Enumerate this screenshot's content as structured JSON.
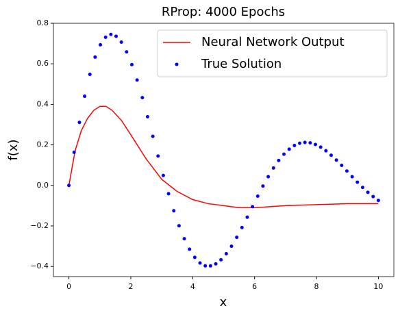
{
  "chart_data": {
    "type": "line",
    "title": "RProp: 4000 Epochs",
    "xlabel": "x",
    "ylabel": "f(x)",
    "xlim": [
      -0.5,
      10.5
    ],
    "ylim": [
      -0.45,
      0.8
    ],
    "xticks": [
      0,
      2,
      4,
      6,
      8,
      10
    ],
    "yticks": [
      {
        "value": -0.4,
        "label": "−0.4"
      },
      {
        "value": -0.2,
        "label": "−0.2"
      },
      {
        "value": 0,
        "label": "0.0"
      },
      0.2,
      0.4,
      0.6,
      0.8
    ],
    "legend": "upper right",
    "series": [
      {
        "name": "Neural Network Output",
        "color": "#ff0000",
        "type": "line",
        "x": [
          0,
          0.2,
          0.4,
          0.6,
          0.8,
          1.0,
          1.2,
          1.4,
          1.7,
          2,
          2.5,
          3,
          3.5,
          4,
          4.5,
          5,
          5.5,
          6,
          7,
          8,
          9,
          10
        ],
        "values": [
          0,
          0.17,
          0.27,
          0.33,
          0.37,
          0.39,
          0.39,
          0.37,
          0.32,
          0.25,
          0.13,
          0.03,
          -0.03,
          -0.07,
          -0.09,
          -0.1,
          -0.11,
          -0.11,
          -0.1,
          -0.095,
          -0.09,
          -0.09
        ]
      },
      {
        "name": "True Solution",
        "color": "#0000ff",
        "type": "scatter",
        "x": [
          0,
          0.169,
          0.339,
          0.508,
          0.678,
          0.847,
          1.017,
          1.186,
          1.356,
          1.525,
          1.695,
          1.864,
          2.034,
          2.203,
          2.373,
          2.542,
          2.712,
          2.881,
          3.051,
          3.22,
          3.39,
          3.559,
          3.729,
          3.898,
          4.068,
          4.237,
          4.407,
          4.576,
          4.746,
          4.915,
          5.085,
          5.254,
          5.424,
          5.593,
          5.763,
          5.932,
          6.102,
          6.271,
          6.441,
          6.61,
          6.78,
          6.949,
          7.119,
          7.288,
          7.458,
          7.627,
          7.797,
          7.966,
          8.136,
          8.305,
          8.475,
          8.644,
          8.814,
          8.983,
          9.153,
          9.322,
          9.492,
          9.661,
          9.831,
          10
        ],
        "values": [
          0,
          0.163,
          0.311,
          0.44,
          0.548,
          0.633,
          0.694,
          0.731,
          0.745,
          0.736,
          0.707,
          0.659,
          0.596,
          0.52,
          0.433,
          0.339,
          0.242,
          0.145,
          0.049,
          -0.041,
          -0.125,
          -0.199,
          -0.263,
          -0.315,
          -0.355,
          -0.383,
          -0.397,
          -0.397,
          -0.387,
          -0.367,
          -0.337,
          -0.3,
          -0.256,
          -0.208,
          -0.157,
          -0.105,
          -0.053,
          -0.003,
          0.043,
          0.086,
          0.123,
          0.154,
          0.179,
          0.197,
          0.208,
          0.212,
          0.21,
          0.202,
          0.189,
          0.171,
          0.149,
          0.125,
          0.099,
          0.071,
          0.043,
          0.016,
          -0.01,
          -0.034,
          -0.055,
          -0.074
        ]
      }
    ]
  }
}
